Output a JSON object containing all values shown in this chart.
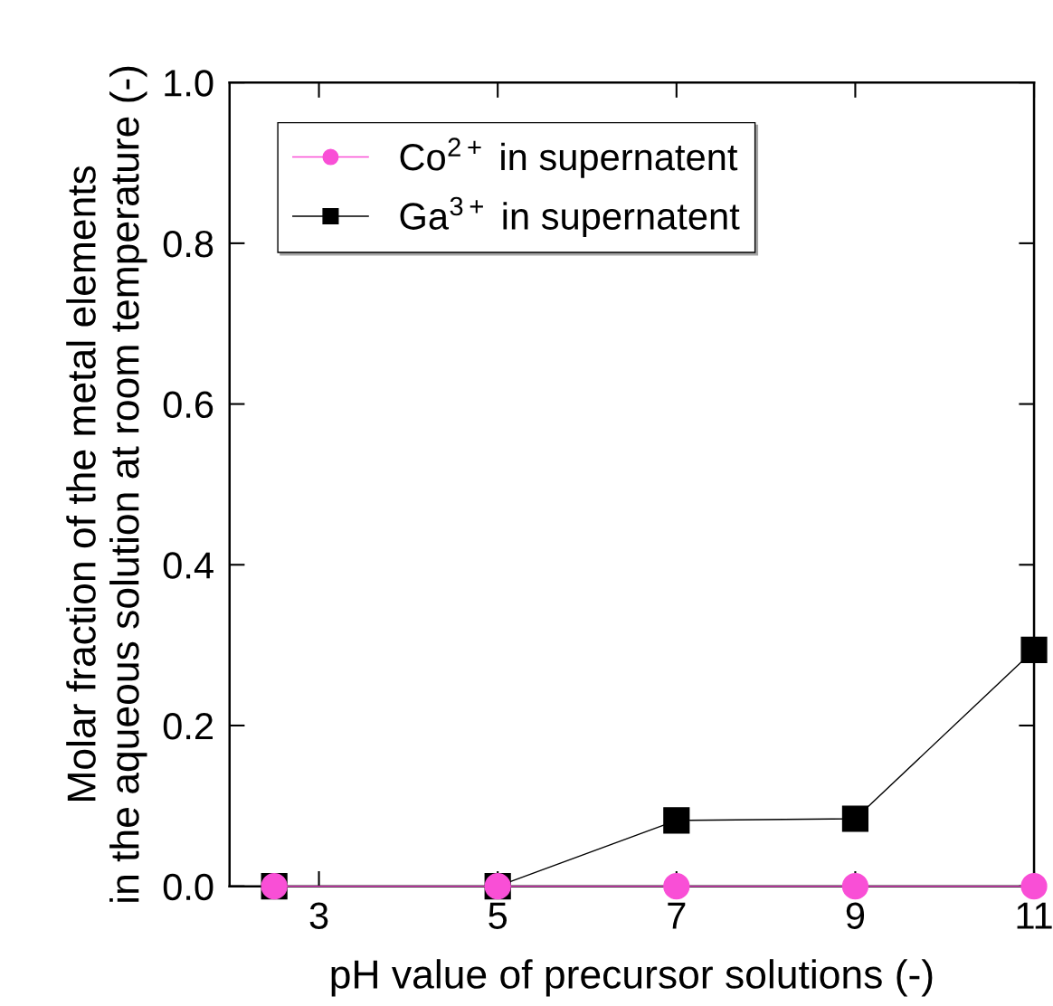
{
  "chart_data": {
    "type": "line",
    "xlabel": "pH value of precursor solutions (-)",
    "ylabel": "Molar fraction of the metal elements\nin the aqueous solution at room temperature (-)",
    "xlim": [
      2,
      11
    ],
    "xticks": [
      3,
      5,
      7,
      9,
      11
    ],
    "ylim": [
      0,
      1.0
    ],
    "yticks": [
      {
        "value": 0,
        "label": "0.0"
      },
      {
        "value": 0.2,
        "label": "0.2"
      },
      {
        "value": 0.4,
        "label": "0.4"
      },
      {
        "value": 0.6,
        "label": "0.6"
      },
      {
        "value": 0.8,
        "label": "0.8"
      },
      {
        "value": 1.0,
        "label": "1.0"
      }
    ],
    "grid": false,
    "legend": "top left",
    "series": [
      {
        "name": "Co$^{2+}$ in supernatent",
        "color": "#f94fd6",
        "marker": "circle",
        "x": [
          2.5,
          5,
          7,
          9,
          11
        ],
        "values": [
          0,
          0,
          0,
          0,
          0
        ]
      },
      {
        "name": "Ga$^{3+}$ in supernatent",
        "color": "#000000",
        "marker": "square",
        "x": [
          2.5,
          5,
          7,
          9,
          11
        ],
        "values": [
          0,
          0,
          0.082,
          0.084,
          0.294
        ]
      }
    ]
  }
}
